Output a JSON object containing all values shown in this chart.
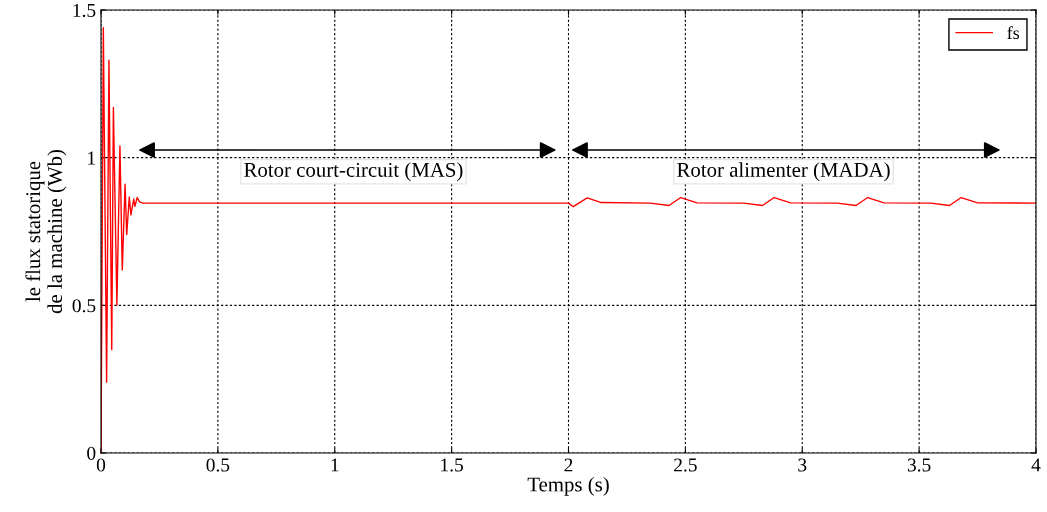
{
  "chart_data": {
    "type": "line",
    "xlabel": "Temps (s)",
    "ylabel": "le flux statorique\nde la machine (Wb)",
    "xlim": [
      0,
      4
    ],
    "ylim": [
      0,
      1.5
    ],
    "xticks": [
      0,
      0.5,
      1,
      1.5,
      2,
      2.5,
      3,
      3.5,
      4
    ],
    "yticks": [
      0,
      0.5,
      1,
      1.5
    ],
    "grid": true,
    "legend": "top right",
    "line_style": "solid",
    "marker": "none",
    "annotations": [
      "Rotor court-circuit (MAS)",
      "Rotor alimenter (MADA)"
    ],
    "series": [
      {
        "name": "fs",
        "color": "#ff0000",
        "x": [
          0,
          0.01,
          0.024,
          0.034,
          0.046,
          0.053,
          0.068,
          0.081,
          0.091,
          0.103,
          0.11,
          0.121,
          0.128,
          0.14,
          0.145,
          0.155,
          0.165,
          0.18,
          2.0,
          2.02,
          2.08,
          2.14,
          2.35,
          2.43,
          2.48,
          2.55,
          2.75,
          2.83,
          2.88,
          2.95,
          3.15,
          3.23,
          3.28,
          3.35,
          3.55,
          3.63,
          3.68,
          3.75,
          4.0
        ],
        "values": [
          0,
          1.44,
          0.24,
          1.33,
          0.35,
          1.17,
          0.5,
          1.04,
          0.62,
          0.91,
          0.74,
          0.867,
          0.806,
          0.86,
          0.835,
          0.865,
          0.85,
          0.846,
          0.846,
          0.834,
          0.864,
          0.848,
          0.846,
          0.838,
          0.865,
          0.847,
          0.846,
          0.838,
          0.865,
          0.847,
          0.846,
          0.838,
          0.865,
          0.847,
          0.846,
          0.838,
          0.865,
          0.847,
          0.846
        ]
      }
    ]
  }
}
